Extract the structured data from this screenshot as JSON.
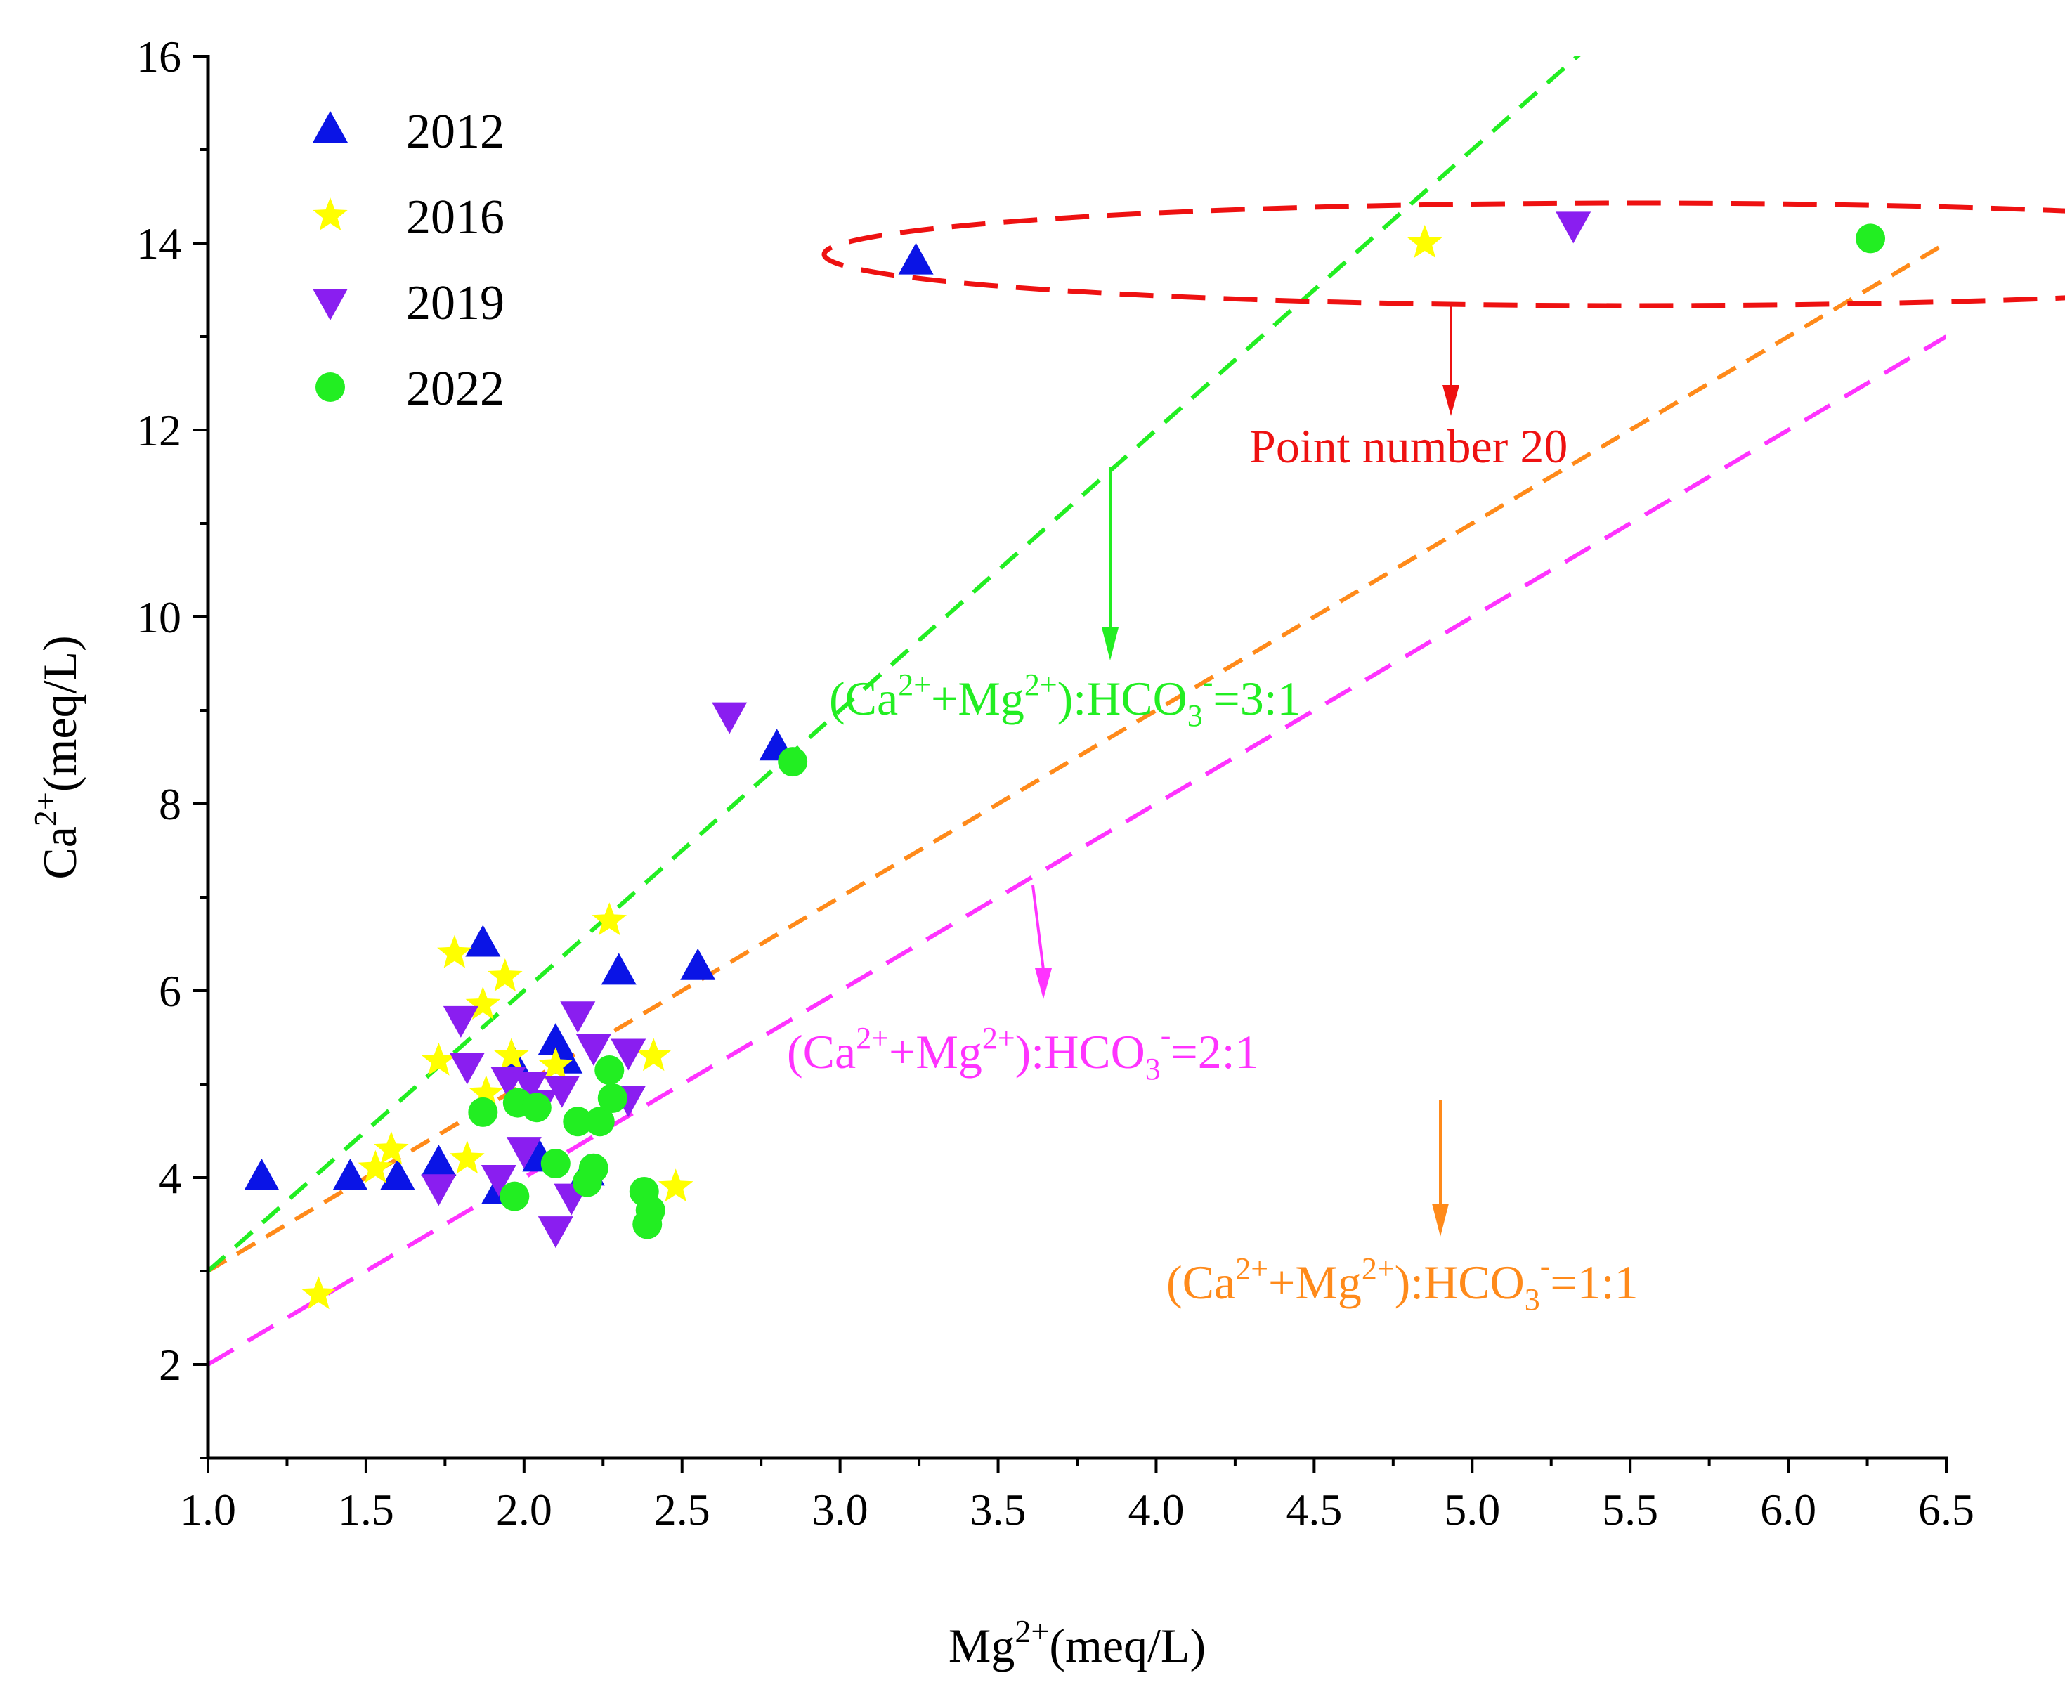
{
  "chart_data": {
    "type": "scatter",
    "title": "",
    "xlabel": "Mg",
    "xlabel_sup": "2+",
    "xlabel_unit": "(meq/L)",
    "ylabel": "Ca",
    "ylabel_sup": "2+",
    "ylabel_unit": "(meq/L)",
    "xlim": [
      1.0,
      6.5
    ],
    "ylim": [
      1,
      16
    ],
    "xticks": [
      "1.0",
      "1.5",
      "2.0",
      "2.5",
      "3.0",
      "3.5",
      "4.0",
      "4.5",
      "5.0",
      "5.5",
      "6.0",
      "6.5"
    ],
    "yticks": [
      "2",
      "4",
      "6",
      "8",
      "10",
      "12",
      "14",
      "16"
    ],
    "legend_position": "top-left",
    "series": [
      {
        "name": "2012",
        "marker": "triangle-up",
        "color": "#0a14e6",
        "points": [
          [
            1.17,
            4.0
          ],
          [
            1.45,
            4.0
          ],
          [
            1.6,
            4.0
          ],
          [
            1.73,
            4.15
          ],
          [
            1.87,
            6.5
          ],
          [
            1.92,
            3.85
          ],
          [
            1.97,
            5.2
          ],
          [
            2.05,
            4.2
          ],
          [
            2.1,
            5.45
          ],
          [
            2.13,
            5.25
          ],
          [
            2.2,
            4.05
          ],
          [
            2.3,
            6.2
          ],
          [
            2.55,
            6.25
          ],
          [
            2.8,
            8.6
          ],
          [
            3.24,
            13.8
          ]
        ]
      },
      {
        "name": "2016",
        "marker": "star",
        "color": "#ffff00",
        "points": [
          [
            1.35,
            2.75
          ],
          [
            1.53,
            4.1
          ],
          [
            1.58,
            4.3
          ],
          [
            1.73,
            5.25
          ],
          [
            1.78,
            6.4
          ],
          [
            1.82,
            4.2
          ],
          [
            1.87,
            5.85
          ],
          [
            1.88,
            4.9
          ],
          [
            1.94,
            6.15
          ],
          [
            1.96,
            5.3
          ],
          [
            2.1,
            5.2
          ],
          [
            2.27,
            6.75
          ],
          [
            2.41,
            5.3
          ],
          [
            2.48,
            3.9
          ],
          [
            4.85,
            14.0
          ]
        ]
      },
      {
        "name": "2019",
        "marker": "triangle-down",
        "color": "#8a1ef0",
        "points": [
          [
            1.73,
            3.9
          ],
          [
            1.8,
            5.7
          ],
          [
            1.82,
            5.2
          ],
          [
            1.92,
            4.0
          ],
          [
            1.95,
            5.05
          ],
          [
            2.0,
            4.3
          ],
          [
            2.02,
            5.0
          ],
          [
            2.05,
            4.8
          ],
          [
            2.1,
            3.45
          ],
          [
            2.12,
            4.95
          ],
          [
            2.15,
            3.8
          ],
          [
            2.17,
            5.75
          ],
          [
            2.22,
            5.4
          ],
          [
            2.33,
            5.35
          ],
          [
            2.33,
            4.85
          ],
          [
            2.65,
            8.95
          ],
          [
            5.32,
            14.2
          ]
        ]
      },
      {
        "name": "2022",
        "marker": "circle",
        "color": "#22ee22",
        "points": [
          [
            1.87,
            4.7
          ],
          [
            1.97,
            3.8
          ],
          [
            1.98,
            4.8
          ],
          [
            2.04,
            4.75
          ],
          [
            2.1,
            4.15
          ],
          [
            2.17,
            4.6
          ],
          [
            2.2,
            3.95
          ],
          [
            2.22,
            4.1
          ],
          [
            2.24,
            4.6
          ],
          [
            2.27,
            5.15
          ],
          [
            2.28,
            4.85
          ],
          [
            2.38,
            3.85
          ],
          [
            2.39,
            3.5
          ],
          [
            2.4,
            3.65
          ],
          [
            2.85,
            8.45
          ],
          [
            6.26,
            14.05
          ]
        ]
      }
    ],
    "ratio_lines": [
      {
        "slope": 2,
        "intercept": 1,
        "color": "#ff8a1a",
        "label_main": "(Ca",
        "label_sup1": "2+",
        "label_mid": "+Mg",
        "label_sup2": "2+",
        "label_mid2": "):HCO",
        "label_sub": "3",
        "label_sup3": "-",
        "label_end": "=1:1"
      },
      {
        "slope": 2,
        "intercept": 0,
        "color": "#ff33ff",
        "label_main": "(Ca",
        "label_sup1": "2+",
        "label_mid": "+Mg",
        "label_sup2": "2+",
        "label_mid2": "):HCO",
        "label_sub": "3",
        "label_sup3": "-",
        "label_end": "=2:1"
      },
      {
        "slope": 3,
        "intercept": 0,
        "color": "#22ee22",
        "label_main": "(Ca",
        "label_sup1": "2+",
        "label_mid": "+Mg",
        "label_sup2": "2+",
        "label_mid2": "):HCO",
        "label_sub": "3",
        "label_sup3": "-",
        "label_end": "=3:1"
      }
    ],
    "annotations": [
      {
        "text": "Point number 20",
        "color": "#ee1111"
      }
    ]
  }
}
